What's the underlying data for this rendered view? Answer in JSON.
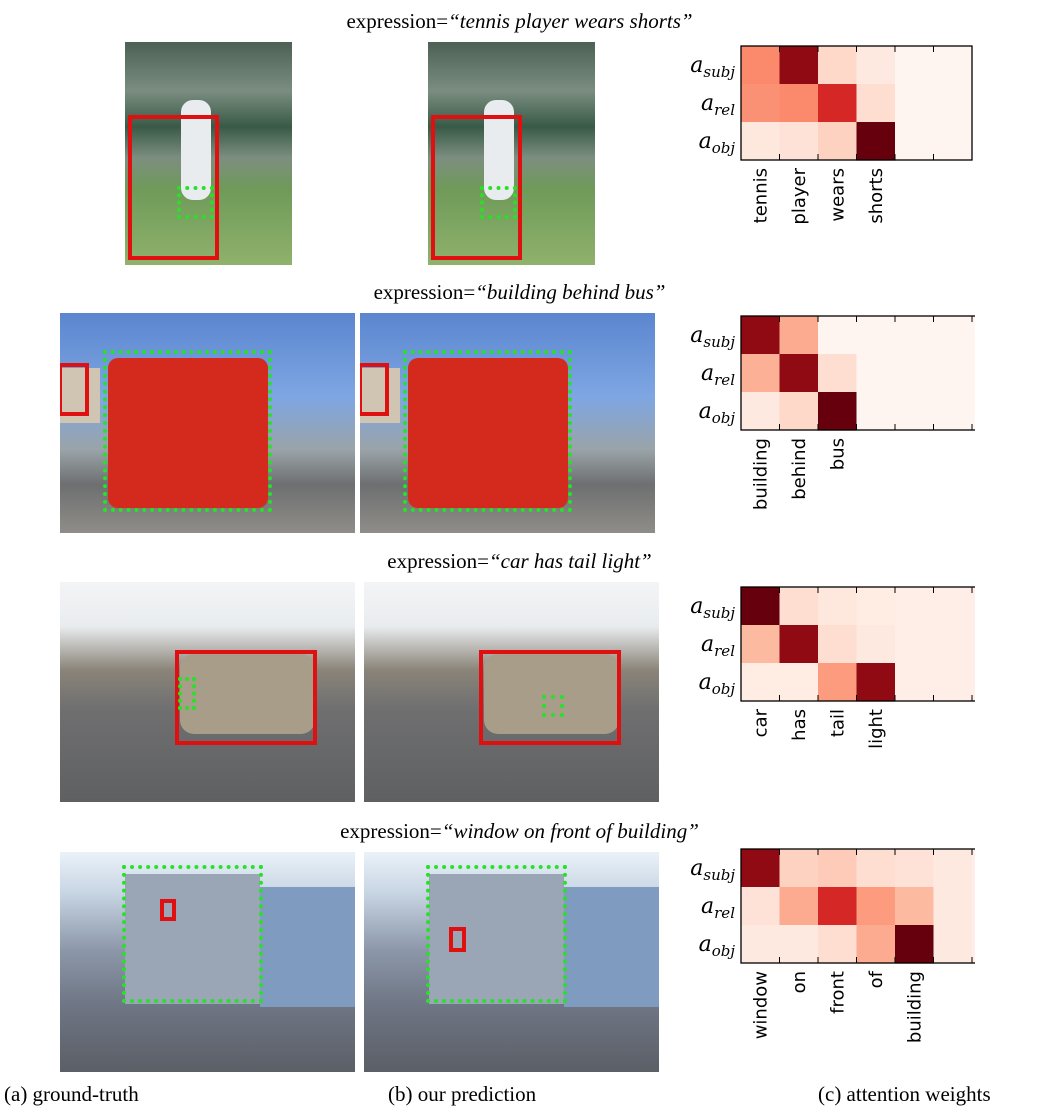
{
  "examples": [
    {
      "expression_prefix": "expression=",
      "expression_text": "“tennis player wears shorts”",
      "ground_truth_image_icon": "tennis-scene-photo",
      "prediction_image_icon": "tennis-scene-photo",
      "attention": {
        "rows": [
          {
            "letter": "a",
            "sub": "subj"
          },
          {
            "letter": "a",
            "sub": "rel"
          },
          {
            "letter": "a",
            "sub": "obj"
          }
        ],
        "words": [
          "tennis",
          "player",
          "wears",
          "shorts"
        ],
        "num_columns": 6,
        "weights": [
          [
            0.4,
            0.9,
            0.12,
            0.05,
            0,
            0
          ],
          [
            0.38,
            0.4,
            0.7,
            0.1,
            0,
            0
          ],
          [
            0.06,
            0.08,
            0.15,
            1.0,
            0,
            0
          ]
        ]
      }
    },
    {
      "expression_prefix": "expression=",
      "expression_text": "“building behind bus”",
      "ground_truth_image_icon": "double-decker-bus-photo",
      "prediction_image_icon": "double-decker-bus-photo",
      "attention": {
        "rows": [
          {
            "letter": "a",
            "sub": "subj"
          },
          {
            "letter": "a",
            "sub": "rel"
          },
          {
            "letter": "a",
            "sub": "obj"
          }
        ],
        "words": [
          "building",
          "behind",
          "bus"
        ],
        "num_columns": 8,
        "weights": [
          [
            0.9,
            0.3,
            0,
            0,
            0,
            0,
            0,
            0
          ],
          [
            0.28,
            0.9,
            0.1,
            0,
            0,
            0,
            0,
            0
          ],
          [
            0.05,
            0.12,
            1.0,
            0,
            0,
            0,
            0,
            0
          ]
        ]
      }
    },
    {
      "expression_prefix": "expression=",
      "expression_text": "“car has tail light”",
      "ground_truth_image_icon": "suv-and-bicycle-photo",
      "prediction_image_icon": "suv-and-bicycle-photo",
      "attention": {
        "rows": [
          {
            "letter": "a",
            "sub": "subj"
          },
          {
            "letter": "a",
            "sub": "rel"
          },
          {
            "letter": "a",
            "sub": "obj"
          }
        ],
        "words": [
          "car",
          "has",
          "tail",
          "light"
        ],
        "num_columns": 8,
        "weights": [
          [
            1.0,
            0.1,
            0.06,
            0.04,
            0.03,
            0.03,
            0.03,
            0.03
          ],
          [
            0.25,
            0.9,
            0.1,
            0.05,
            0.03,
            0.03,
            0.03,
            0.03
          ],
          [
            0.04,
            0.04,
            0.35,
            0.9,
            0.03,
            0.03,
            0.03,
            0.03
          ]
        ]
      }
    },
    {
      "expression_prefix": "expression=",
      "expression_text": "“window on front of building”",
      "ground_truth_image_icon": "houses-street-photo",
      "prediction_image_icon": "houses-street-photo",
      "attention": {
        "rows": [
          {
            "letter": "a",
            "sub": "subj"
          },
          {
            "letter": "a",
            "sub": "rel"
          },
          {
            "letter": "a",
            "sub": "obj"
          }
        ],
        "words": [
          "window",
          "on",
          "front",
          "of",
          "building"
        ],
        "num_columns": 7,
        "weights": [
          [
            0.9,
            0.15,
            0.18,
            0.1,
            0.08,
            0.05,
            0.03
          ],
          [
            0.08,
            0.3,
            0.7,
            0.35,
            0.25,
            0.05,
            0.03
          ],
          [
            0.05,
            0.05,
            0.1,
            0.3,
            1.0,
            0.05,
            0.03
          ]
        ]
      }
    }
  ],
  "captions": [
    "(a) ground-truth",
    "(b) our prediction",
    "(c) attention weights"
  ],
  "colors": {
    "red_box": "#e01010",
    "green_box": "#29e02a",
    "heat_low": "#fff5f0",
    "heat_high": "#67000d"
  }
}
